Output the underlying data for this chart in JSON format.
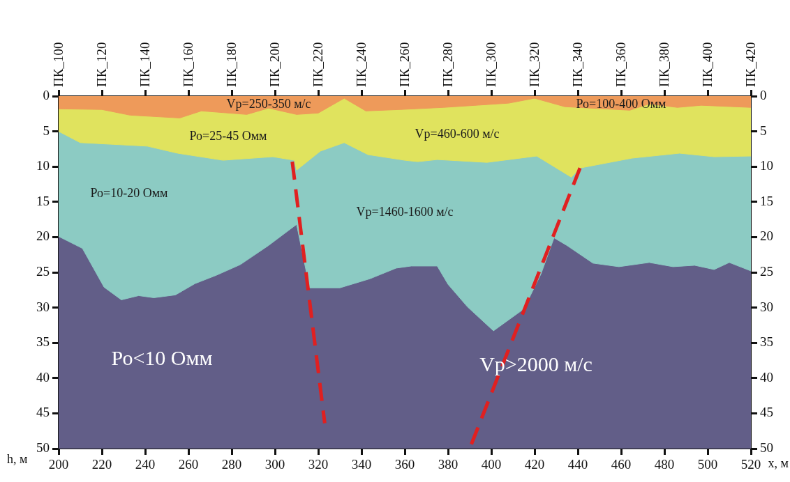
{
  "chart_data": {
    "type": "area",
    "xlabel": "x, м",
    "ylabel": "h, м",
    "xlim": [
      200,
      520
    ],
    "xticks": [
      200,
      220,
      240,
      260,
      280,
      300,
      320,
      340,
      360,
      380,
      400,
      420,
      440,
      460,
      480,
      500,
      520
    ],
    "x2lim": [
      100,
      420
    ],
    "x2ticks": [
      {
        "value": 100,
        "label": "ПК_100"
      },
      {
        "value": 120,
        "label": "ПК_120"
      },
      {
        "value": 140,
        "label": "ПК_140"
      },
      {
        "value": 160,
        "label": "ПК_160"
      },
      {
        "value": 180,
        "label": "ПК_180"
      },
      {
        "value": 200,
        "label": "ПК_200"
      },
      {
        "value": 220,
        "label": "ПК_220"
      },
      {
        "value": 240,
        "label": "ПК_240"
      },
      {
        "value": 260,
        "label": "ПК_260"
      },
      {
        "value": 280,
        "label": "ПК_280"
      },
      {
        "value": 300,
        "label": "ПК_300"
      },
      {
        "value": 320,
        "label": "ПК_320"
      },
      {
        "value": 340,
        "label": "ПК_340"
      },
      {
        "value": 360,
        "label": "ПК_360"
      },
      {
        "value": 380,
        "label": "ПК_380"
      },
      {
        "value": 400,
        "label": "ПК_400"
      },
      {
        "value": 420,
        "label": "ПК_420"
      }
    ],
    "ylim": [
      50,
      0
    ],
    "yticks": [
      0,
      5,
      10,
      15,
      20,
      25,
      30,
      35,
      40,
      45,
      50
    ],
    "y2lim": [
      50,
      0
    ],
    "y2ticks": [
      0,
      5,
      10,
      15,
      20,
      25,
      30,
      35,
      40,
      45,
      50
    ],
    "legend": false,
    "series": [
      {
        "type": "line",
        "line_style": "dashed",
        "color": "#e02020",
        "x": [
          308,
          323
        ],
        "values": [
          9.3,
          46.4
        ]
      },
      {
        "type": "line",
        "line_style": "dashed",
        "color": "#e02020",
        "x": [
          441,
          390
        ],
        "values": [
          10.2,
          50
        ]
      },
      {
        "color": "#ee9a5a",
        "x": [
          200,
          220,
          233,
          256,
          266,
          287,
          297,
          310,
          320,
          332,
          342,
          358,
          378,
          408,
          420,
          434,
          464,
          473,
          486,
          497,
          520
        ],
        "values": [
          1.8,
          1.9,
          2.7,
          3.1,
          2.1,
          2.6,
          1.7,
          2.6,
          2.4,
          0.3,
          2.1,
          1.9,
          1.6,
          1.0,
          0.3,
          1.5,
          2.0,
          1.1,
          1.6,
          1.3,
          1.6
        ]
      },
      {
        "color": "#e0e35e",
        "x": [
          200,
          210,
          241,
          255,
          276,
          299,
          309,
          310,
          321,
          332,
          343,
          360,
          366,
          375,
          398,
          421,
          437,
          441,
          465,
          487,
          503,
          520
        ],
        "values": [
          5.0,
          6.6,
          7.1,
          8.1,
          9.1,
          8.6,
          9.1,
          10.5,
          7.8,
          6.6,
          8.3,
          9.1,
          9.3,
          9.0,
          9.4,
          8.5,
          11.5,
          10.2,
          8.8,
          8.1,
          8.6,
          8.5
        ]
      },
      {
        "color": "#8ccbc3",
        "x": [
          200,
          211,
          221,
          229,
          237,
          244,
          254,
          263,
          273,
          284,
          297,
          310,
          316,
          330,
          344,
          356,
          363,
          375,
          380,
          389,
          401,
          415,
          423,
          429,
          435,
          447,
          459,
          473,
          484,
          494,
          503,
          510,
          520
        ],
        "values": [
          19.9,
          21.6,
          27.1,
          28.9,
          28.3,
          28.6,
          28.2,
          26.6,
          25.4,
          23.9,
          21.2,
          18.2,
          27.2,
          27.2,
          25.9,
          24.4,
          24.1,
          24.1,
          26.7,
          29.9,
          33.3,
          30.2,
          25.2,
          20.1,
          21.2,
          23.7,
          24.2,
          23.6,
          24.2,
          24.0,
          24.6,
          23.6,
          24.8
        ]
      }
    ],
    "bands": [
      {
        "axis": "y",
        "from": 18.2,
        "to": 50,
        "color": "#625e88"
      }
    ],
    "annotations": [
      "Vp=250-350 м/с",
      "Ро=25-45 Омм",
      "Vp=460-600 м/с",
      "Ро=100-400 Омм",
      "Ро=10-20 Омм",
      "Vp=1460-1600 м/с",
      "Ро<10 Омм",
      "Vp>2000 м/с"
    ]
  }
}
